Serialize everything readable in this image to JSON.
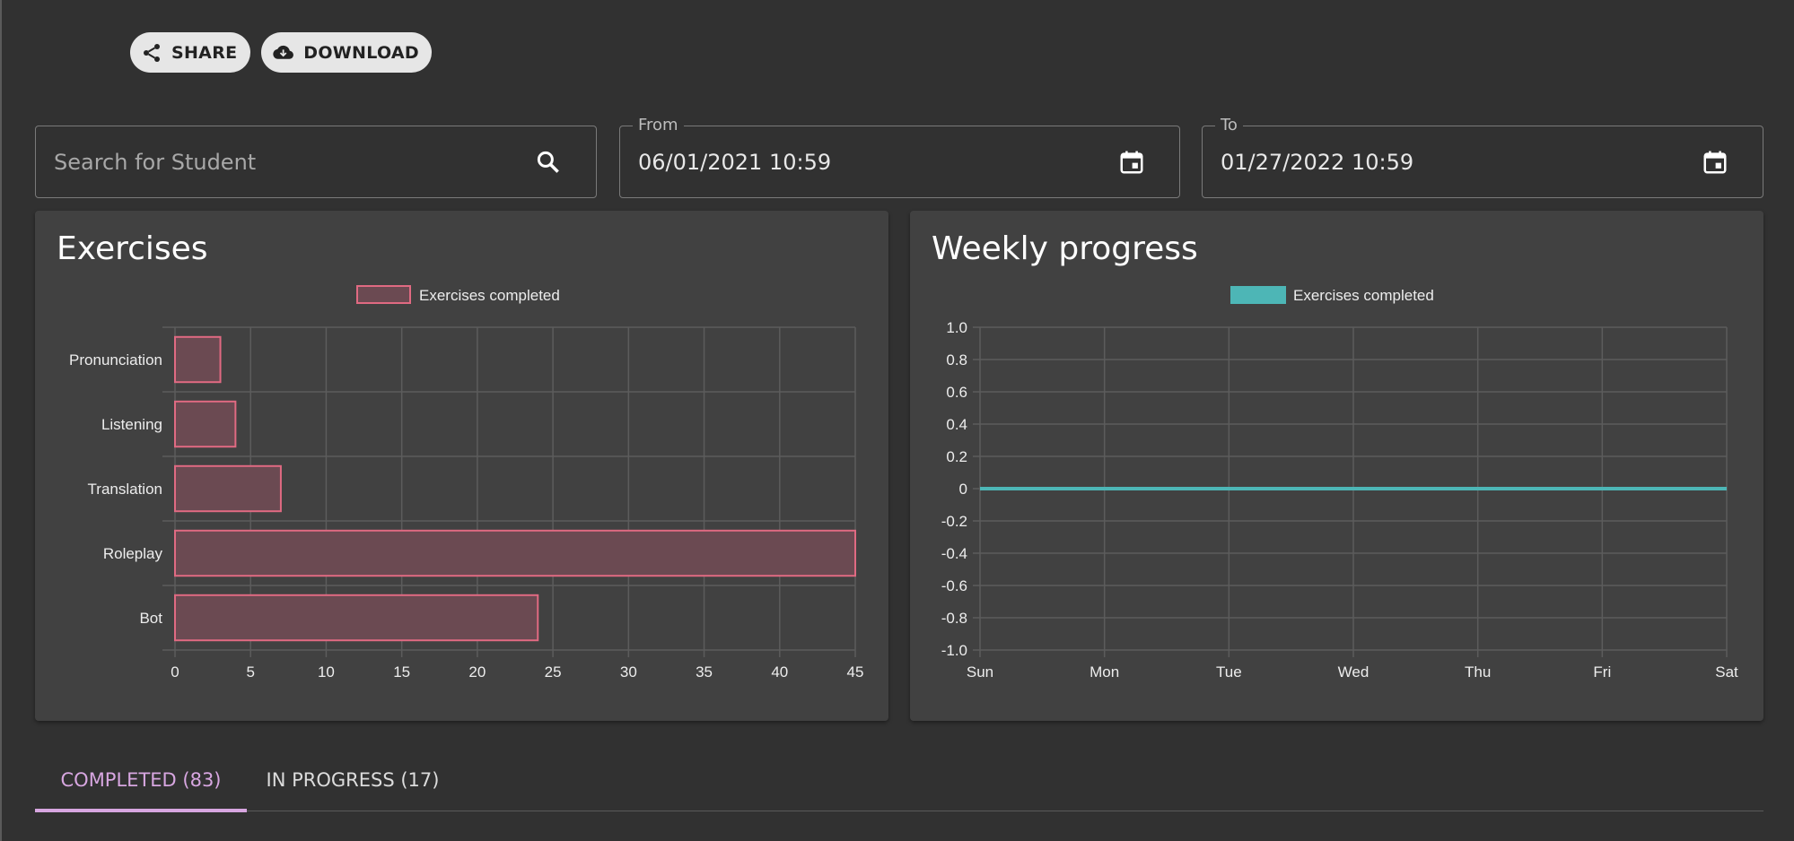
{
  "toolbar": {
    "share_label": "SHARE",
    "download_label": "DOWNLOAD"
  },
  "filters": {
    "search_placeholder": "Search for Student",
    "from_label": "From",
    "from_value": "06/01/2021 10:59",
    "to_label": "To",
    "to_value": "01/27/2022 10:59"
  },
  "cards": {
    "exercises_title": "Exercises",
    "weekly_title": "Weekly progress"
  },
  "chart_data": [
    {
      "type": "bar",
      "orientation": "horizontal",
      "title": "Exercises",
      "categories": [
        "Pronunciation",
        "Listening",
        "Translation",
        "Roleplay",
        "Bot"
      ],
      "series": [
        {
          "name": "Exercises completed",
          "values": [
            3,
            4,
            7,
            45,
            24
          ]
        }
      ],
      "xlim": [
        0,
        45
      ],
      "x_ticks": [
        "0",
        "5",
        "10",
        "15",
        "20",
        "25",
        "30",
        "35",
        "40",
        "45"
      ],
      "grid": true,
      "legend": "top-center",
      "colors": {
        "bar_fill": "#6b4a52",
        "bar_border": "#e06a82"
      }
    },
    {
      "type": "line",
      "title": "Weekly progress",
      "x": [
        "Sun",
        "Mon",
        "Tue",
        "Wed",
        "Thu",
        "Fri",
        "Sat"
      ],
      "series": [
        {
          "name": "Exercises completed",
          "values": [
            0,
            0,
            0,
            0,
            0,
            0,
            0
          ]
        }
      ],
      "ylim": [
        -1.0,
        1.0
      ],
      "y_ticks": [
        "1.0",
        "0.8",
        "0.6",
        "0.4",
        "0.2",
        "0",
        "-0.2",
        "-0.4",
        "-0.6",
        "-0.8",
        "-1.0"
      ],
      "grid": true,
      "legend": "top-center",
      "colors": {
        "line": "#4db6b6"
      }
    }
  ],
  "tabs": [
    {
      "label": "COMPLETED (83)",
      "active": true
    },
    {
      "label": "IN PROGRESS (17)",
      "active": false
    }
  ]
}
